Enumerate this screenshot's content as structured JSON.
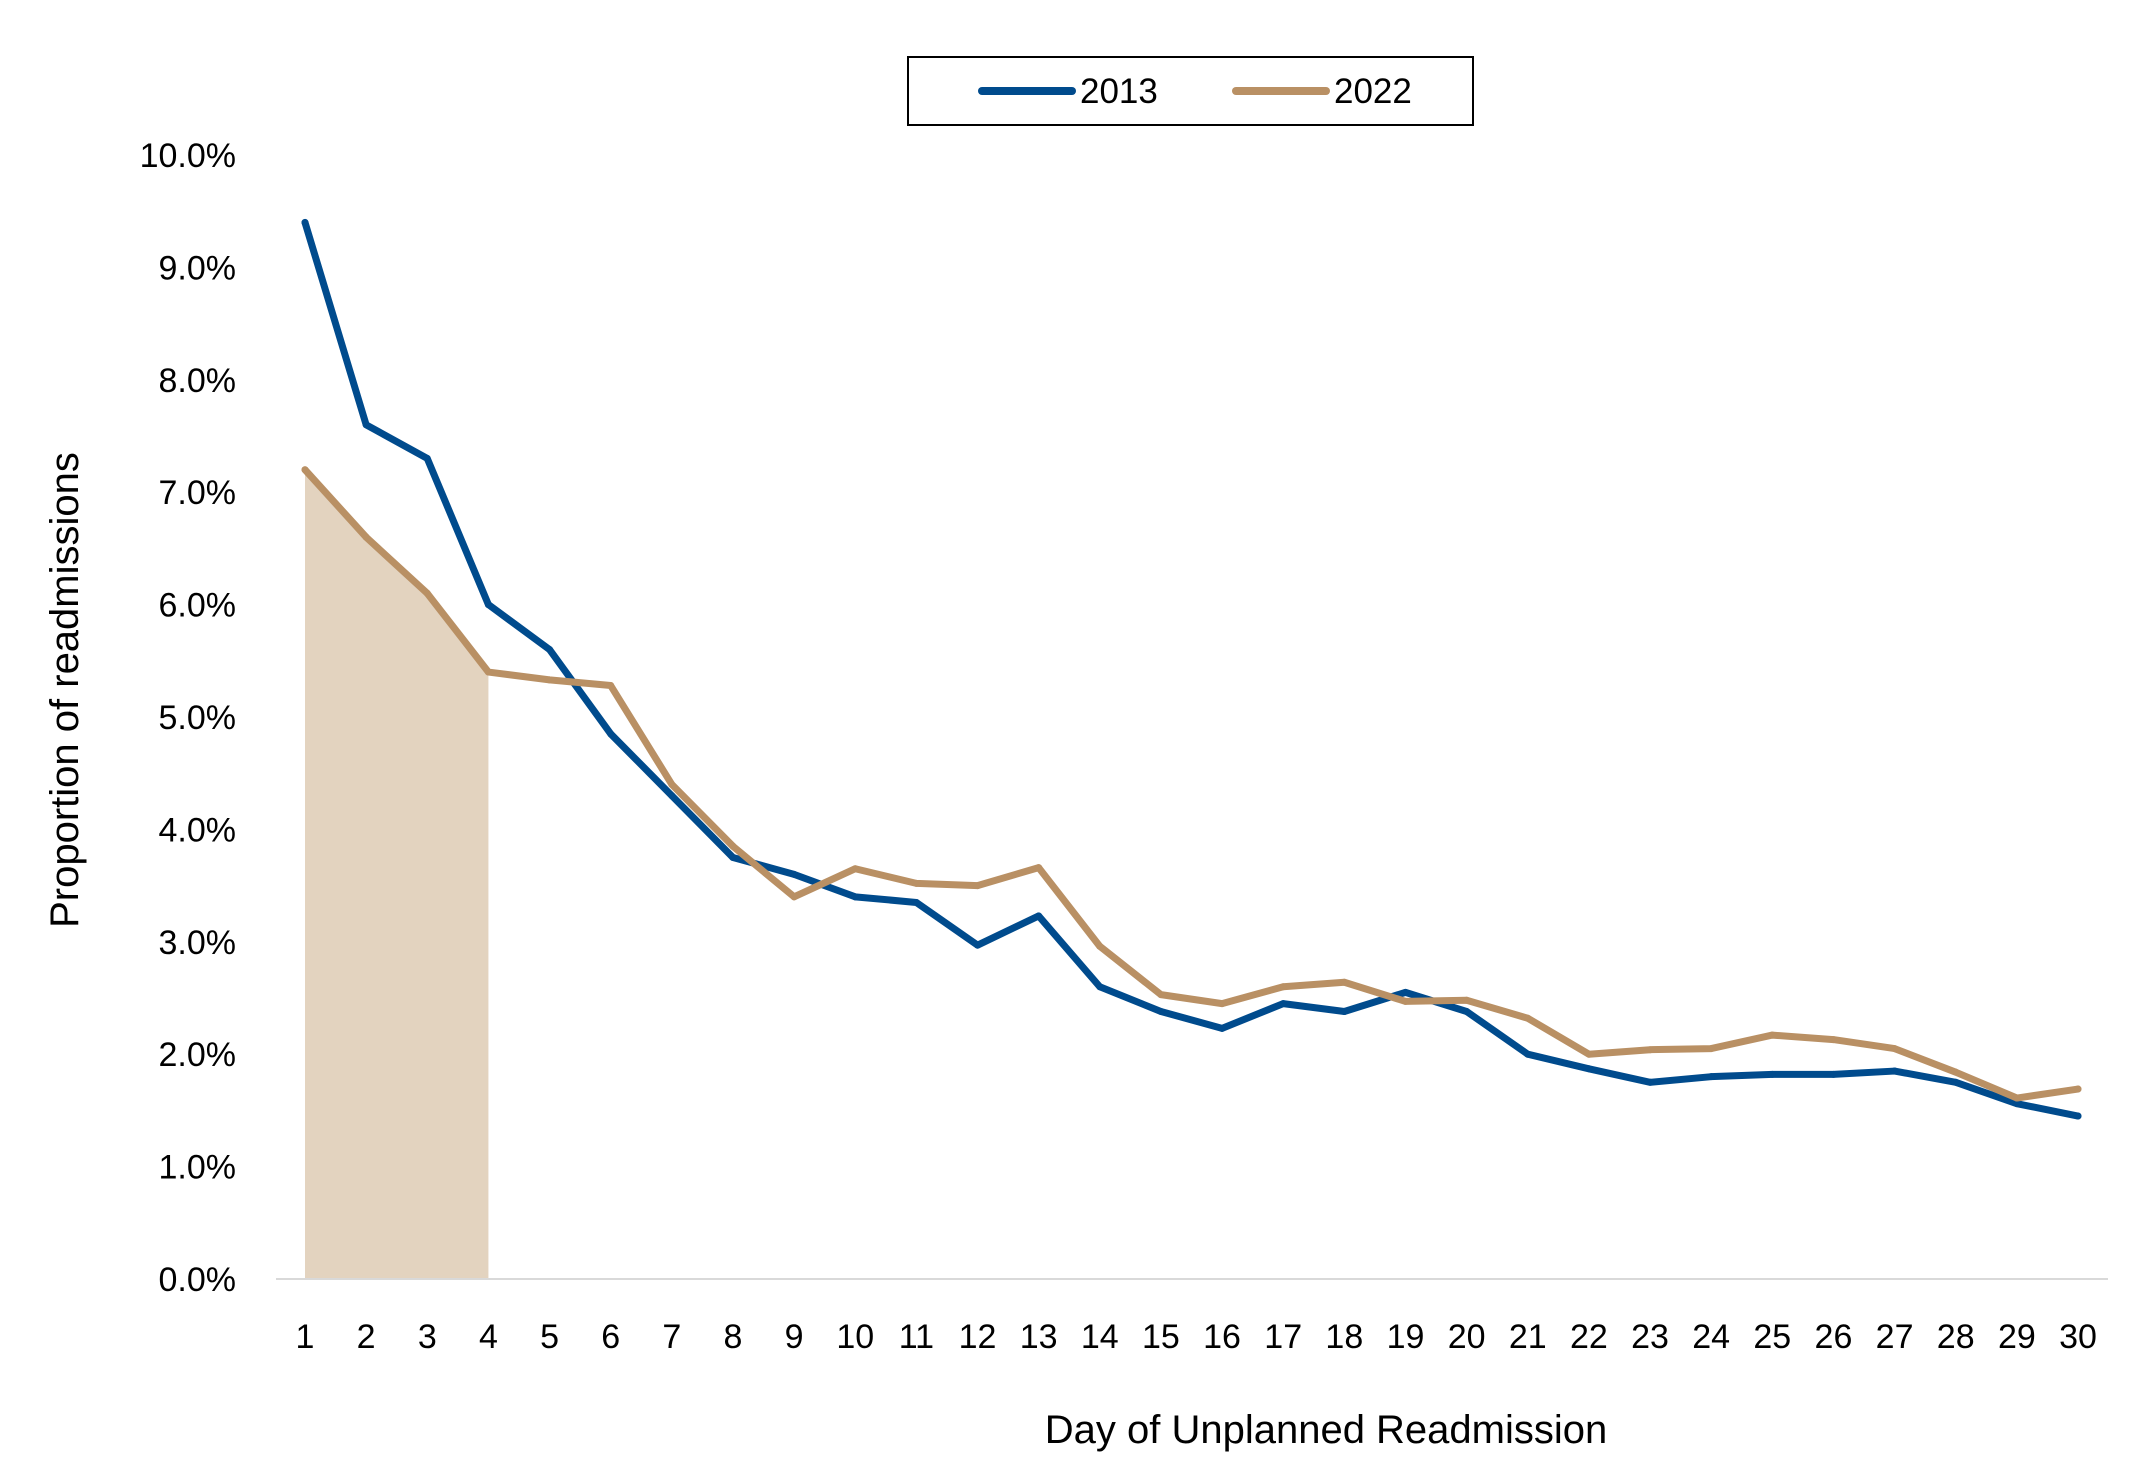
{
  "chart_data": {
    "type": "line",
    "title": "",
    "xlabel": "Day of Unplanned Readmission",
    "ylabel": "Proportion of readmissions",
    "x": [
      1,
      2,
      3,
      4,
      5,
      6,
      7,
      8,
      9,
      10,
      11,
      12,
      13,
      14,
      15,
      16,
      17,
      18,
      19,
      20,
      21,
      22,
      23,
      24,
      25,
      26,
      27,
      28,
      29,
      30
    ],
    "y_ticks": [
      "0.0%",
      "1.0%",
      "2.0%",
      "3.0%",
      "4.0%",
      "5.0%",
      "6.0%",
      "7.0%",
      "8.0%",
      "9.0%",
      "10.0%"
    ],
    "ylim": [
      0,
      10
    ],
    "y_unit": "%",
    "grid": false,
    "legend_position": "top-center",
    "highlight_region": {
      "x_start": 1,
      "x_end": 4,
      "series": "2022",
      "color": "#e3d3bf"
    },
    "series": [
      {
        "name": "2013",
        "color": "#004b8d",
        "values": [
          9.4,
          7.6,
          7.3,
          6.0,
          5.6,
          4.85,
          4.3,
          3.75,
          3.6,
          3.4,
          3.35,
          2.97,
          3.23,
          2.6,
          2.38,
          2.23,
          2.45,
          2.38,
          2.55,
          2.38,
          2.0,
          1.87,
          1.75,
          1.8,
          1.82,
          1.82,
          1.85,
          1.75,
          1.56,
          1.45
        ]
      },
      {
        "name": "2022",
        "color": "#b99064",
        "values": [
          7.2,
          6.6,
          6.1,
          5.4,
          5.33,
          5.28,
          4.4,
          3.85,
          3.4,
          3.65,
          3.52,
          3.5,
          3.66,
          2.96,
          2.53,
          2.45,
          2.6,
          2.64,
          2.47,
          2.48,
          2.32,
          2.0,
          2.04,
          2.05,
          2.17,
          2.13,
          2.05,
          1.84,
          1.61,
          1.69
        ]
      }
    ]
  }
}
